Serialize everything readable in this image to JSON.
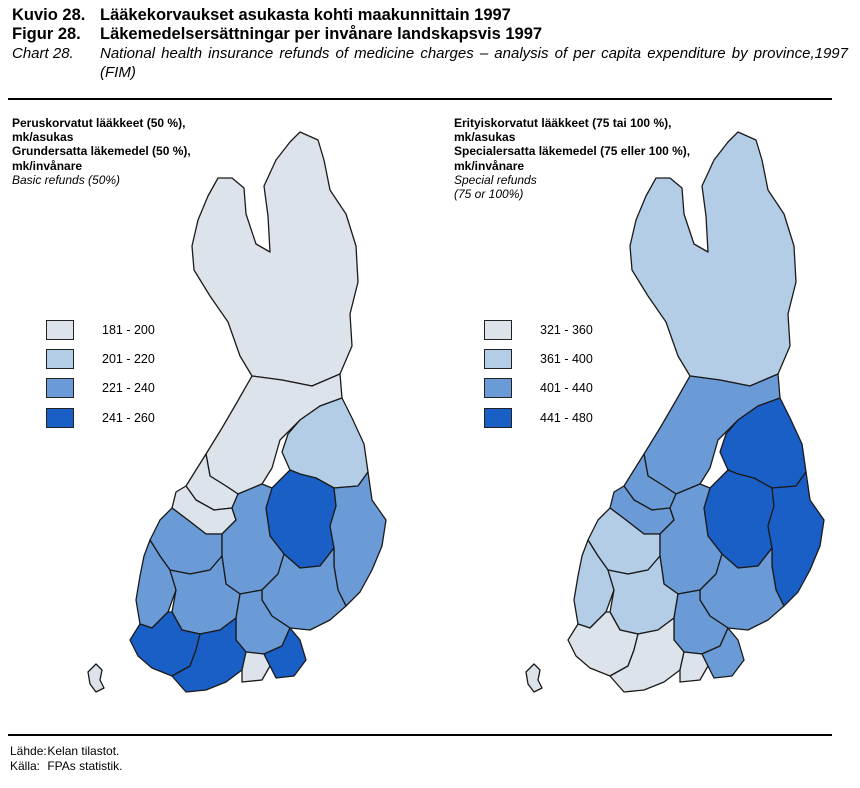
{
  "header": {
    "row1": {
      "num": "Kuvio 28.",
      "text": "Lääkekorvaukset asukasta kohti maakunnittain 1997"
    },
    "row2": {
      "num": "Figur 28.",
      "text": "Läkemedelsersättningar per invånare landskapsvis 1997"
    },
    "row3": {
      "num": "Chart 28.",
      "text": "National health insurance refunds of medicine charges – analysis of per capita expenditure by province,1997 (FIM)"
    }
  },
  "colors": {
    "class1": "#dde3ea",
    "class2": "#b4cde6",
    "class3": "#6a9bd6",
    "class4": "#1a5fc6",
    "outline": "#1a1a1a"
  },
  "maps": {
    "left": {
      "title_fi": "Peruskorvatut lääkkeet (50 %),",
      "unit_fi": "mk/asukas",
      "title_sv": "Grundersatta läkemedel (50 %),",
      "unit_sv": "mk/invånare",
      "title_en": "Basic refunds (50%)",
      "legend": [
        "181 - 200",
        "201 - 220",
        "221 - 240",
        "241 - 260"
      ],
      "regions": {
        "lapland": 1,
        "oulu": 1,
        "kainuu": 2,
        "n_karelia": 3,
        "kuopio": 4,
        "ostrobothnia_n": 1,
        "c_ostrobothnia": 1,
        "vaasa": 3,
        "c_finland": 3,
        "mikkeli": 3,
        "satakunta": 3,
        "hame": 3,
        "kymi": 3,
        "turku": 4,
        "uusimaa": 4,
        "ita_uusimaa": 1,
        "kymi_s": 4,
        "aland": 1
      }
    },
    "right": {
      "title_fi": "Erityiskorvatut lääkkeet (75 tai 100 %),",
      "unit_fi": "mk/asukas",
      "title_sv": "Specialersatta läkemedel (75 eller 100 %),",
      "unit_sv": "mk/invånare",
      "title_en_1": "Special refunds",
      "title_en_2": "(75 or 100%)",
      "legend": [
        "321 - 360",
        "361 - 400",
        "401 - 440",
        "441 - 480"
      ],
      "regions": {
        "lapland": 2,
        "oulu": 3,
        "kainuu": 4,
        "n_karelia": 4,
        "kuopio": 4,
        "ostrobothnia_n": 3,
        "c_ostrobothnia": 3,
        "vaasa": 2,
        "c_finland": 3,
        "mikkeli": 3,
        "satakunta": 2,
        "hame": 2,
        "kymi": 3,
        "turku": 1,
        "uusimaa": 1,
        "ita_uusimaa": 1,
        "kymi_s": 3,
        "aland": 1
      }
    }
  },
  "source": {
    "fi_key": "Lähde:",
    "fi_val": "Kelan tilastot.",
    "sv_key": "Källa:",
    "sv_val": "FPAs statistik."
  }
}
